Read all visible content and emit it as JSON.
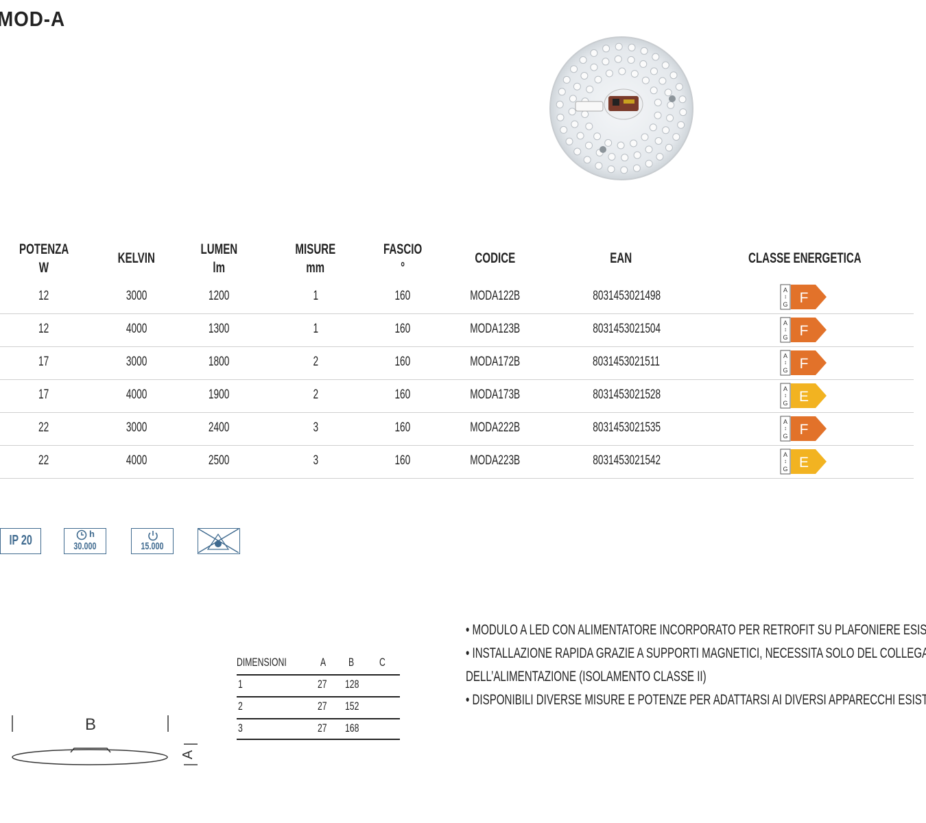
{
  "title": "MOD-A",
  "table": {
    "headers": [
      {
        "line1": "POTENZA",
        "line2": "W"
      },
      {
        "line1": "KELVIN",
        "line2": ""
      },
      {
        "line1": "LUMEN",
        "line2": "lm"
      },
      {
        "line1": "MISURE",
        "line2": "mm"
      },
      {
        "line1": "FASCIO",
        "line2": "°"
      },
      {
        "line1": "CODICE",
        "line2": ""
      },
      {
        "line1": "EAN",
        "line2": ""
      },
      {
        "line1": "CLASSE ENERGETICA",
        "line2": ""
      }
    ],
    "rows": [
      {
        "potenza": "12",
        "kelvin": "3000",
        "lumen": "1200",
        "misure": "1",
        "fascio": "160",
        "codice": "MODA122B",
        "ean": "8031453021498",
        "classe": "F"
      },
      {
        "potenza": "12",
        "kelvin": "4000",
        "lumen": "1300",
        "misure": "1",
        "fascio": "160",
        "codice": "MODA123B",
        "ean": "8031453021504",
        "classe": "F"
      },
      {
        "potenza": "17",
        "kelvin": "3000",
        "lumen": "1800",
        "misure": "2",
        "fascio": "160",
        "codice": "MODA172B",
        "ean": "8031453021511",
        "classe": "F"
      },
      {
        "potenza": "17",
        "kelvin": "4000",
        "lumen": "1900",
        "misure": "2",
        "fascio": "160",
        "codice": "MODA173B",
        "ean": "8031453021528",
        "classe": "E"
      },
      {
        "potenza": "22",
        "kelvin": "3000",
        "lumen": "2400",
        "misure": "3",
        "fascio": "160",
        "codice": "MODA222B",
        "ean": "8031453021535",
        "classe": "F"
      },
      {
        "potenza": "22",
        "kelvin": "4000",
        "lumen": "2500",
        "misure": "3",
        "fascio": "160",
        "codice": "MODA223B",
        "ean": "8031453021542",
        "classe": "E"
      }
    ],
    "energy_scale": {
      "top": "A",
      "bottom": "G"
    },
    "class_colors": {
      "F": "#e2722a",
      "E": "#f2b321"
    }
  },
  "icons": {
    "ip": "IP 20",
    "lifetime_unit": "h",
    "lifetime_value": "30.000",
    "switch_value": "15.000",
    "accent_color": "#3f6a8f",
    "items": [
      "ip20-icon",
      "lifetime-hours-icon",
      "switch-cycles-icon",
      "no-light-hazard-icon"
    ]
  },
  "dimensions": {
    "headers": {
      "label": "DIMENSIONI",
      "a": "A",
      "b": "B",
      "c": "C"
    },
    "rows": [
      {
        "n": "1",
        "a": "27",
        "b": "128",
        "c": ""
      },
      {
        "n": "2",
        "a": "27",
        "b": "152",
        "c": ""
      },
      {
        "n": "3",
        "a": "27",
        "b": "168",
        "c": ""
      }
    ],
    "drawing_labels": {
      "b": "B",
      "a": "A"
    }
  },
  "features": [
    "• MODULO A LED CON ALIMENTATORE INCORPORATO PER RETROFIT SU PLAFONIERE ESISTENTI",
    "• INSTALLAZIONE RAPIDA GRAZIE A SUPPORTI MAGNETICI, NECESSITA SOLO DEL COLLEGAMENTO",
    "DELL’ALIMENTAZIONE (ISOLAMENTO CLASSE II)",
    "• DISPONIBILI DIVERSE MISURE E POTENZE PER ADATTARSI AI DIVERSI APPARECCHI ESISTENTI"
  ]
}
